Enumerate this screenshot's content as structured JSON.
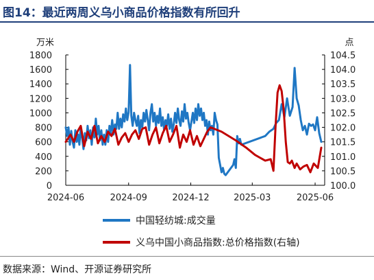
{
  "figure": {
    "title": "图14：最近两周义乌小商品价格指数有所回升",
    "source": "数据来源：Wind、开源证券研究所"
  },
  "colors": {
    "title": "#1f3f7a",
    "volume_series": "#1f77c4",
    "index_series": "#c00000"
  },
  "chart_data": {
    "type": "line",
    "left_axis": {
      "unit": "万米",
      "ylim": [
        0,
        1800
      ],
      "ticks": [
        "0",
        "200",
        "400",
        "600",
        "800",
        "1000",
        "1200",
        "1400",
        "1600",
        "1800"
      ]
    },
    "right_axis": {
      "unit": "点",
      "ylim": [
        100.0,
        104.5
      ],
      "ticks": [
        "100.0",
        "100.5",
        "101.0",
        "101.5",
        "102.0",
        "102.5",
        "103.0",
        "103.5",
        "104.0",
        "104.5"
      ]
    },
    "x_axis": {
      "range": [
        "2024-06-01",
        "2025-06-15"
      ],
      "ticks": [
        "2024-06",
        "2024-09",
        "2024-12",
        "2025-03",
        "2025-06"
      ]
    },
    "grid": false,
    "series": [
      {
        "name": "中国轻纺城:成交量",
        "axis": "left",
        "points": [
          [
            "2024-06-01",
            800
          ],
          [
            "2024-06-03",
            680
          ],
          [
            "2024-06-05",
            800
          ],
          [
            "2024-06-07",
            560
          ],
          [
            "2024-06-09",
            750
          ],
          [
            "2024-06-11",
            600
          ],
          [
            "2024-06-13",
            520
          ],
          [
            "2024-06-15",
            760
          ],
          [
            "2024-06-17",
            600
          ],
          [
            "2024-06-19",
            700
          ],
          [
            "2024-06-21",
            560
          ],
          [
            "2024-06-23",
            800
          ],
          [
            "2024-06-25",
            650
          ],
          [
            "2024-06-27",
            500
          ],
          [
            "2024-06-29",
            720
          ],
          [
            "2024-07-01",
            620
          ],
          [
            "2024-07-03",
            820
          ],
          [
            "2024-07-05",
            650
          ],
          [
            "2024-07-07",
            760
          ],
          [
            "2024-07-09",
            560
          ],
          [
            "2024-07-11",
            800
          ],
          [
            "2024-07-13",
            660
          ],
          [
            "2024-07-15",
            920
          ],
          [
            "2024-07-17",
            700
          ],
          [
            "2024-07-19",
            820
          ],
          [
            "2024-07-21",
            620
          ],
          [
            "2024-07-23",
            760
          ],
          [
            "2024-07-25",
            560
          ],
          [
            "2024-07-27",
            700
          ],
          [
            "2024-07-29",
            560
          ],
          [
            "2024-07-31",
            760
          ],
          [
            "2024-08-02",
            600
          ],
          [
            "2024-08-04",
            820
          ],
          [
            "2024-08-06",
            720
          ],
          [
            "2024-08-08",
            900
          ],
          [
            "2024-08-10",
            700
          ],
          [
            "2024-08-12",
            840
          ],
          [
            "2024-08-14",
            780
          ],
          [
            "2024-08-16",
            1000
          ],
          [
            "2024-08-18",
            780
          ],
          [
            "2024-08-20",
            920
          ],
          [
            "2024-08-22",
            800
          ],
          [
            "2024-08-24",
            980
          ],
          [
            "2024-08-26",
            880
          ],
          [
            "2024-08-28",
            1060
          ],
          [
            "2024-08-30",
            900
          ],
          [
            "2024-09-01",
            1010
          ],
          [
            "2024-09-03",
            1660
          ],
          [
            "2024-09-05",
            960
          ],
          [
            "2024-09-07",
            820
          ],
          [
            "2024-09-09",
            1000
          ],
          [
            "2024-09-11",
            900
          ],
          [
            "2024-09-13",
            820
          ],
          [
            "2024-09-15",
            960
          ],
          [
            "2024-09-17",
            720
          ],
          [
            "2024-09-19",
            900
          ],
          [
            "2024-09-21",
            800
          ],
          [
            "2024-09-23",
            1000
          ],
          [
            "2024-09-25",
            880
          ],
          [
            "2024-09-27",
            1040
          ],
          [
            "2024-09-29",
            900
          ],
          [
            "2024-10-01",
            760
          ],
          [
            "2024-10-03",
            1000
          ],
          [
            "2024-10-05",
            1120
          ],
          [
            "2024-10-07",
            880
          ],
          [
            "2024-10-09",
            1000
          ],
          [
            "2024-10-11",
            820
          ],
          [
            "2024-10-13",
            960
          ],
          [
            "2024-10-15",
            860
          ],
          [
            "2024-10-17",
            1060
          ],
          [
            "2024-10-19",
            820
          ],
          [
            "2024-10-21",
            940
          ],
          [
            "2024-10-23",
            760
          ],
          [
            "2024-10-25",
            900
          ],
          [
            "2024-10-27",
            820
          ],
          [
            "2024-10-29",
            980
          ],
          [
            "2024-10-31",
            780
          ],
          [
            "2024-11-02",
            920
          ],
          [
            "2024-11-04",
            740
          ],
          [
            "2024-11-06",
            840
          ],
          [
            "2024-11-08",
            1000
          ],
          [
            "2024-11-10",
            860
          ],
          [
            "2024-11-12",
            1060
          ],
          [
            "2024-11-14",
            900
          ],
          [
            "2024-11-16",
            820
          ],
          [
            "2024-11-18",
            1020
          ],
          [
            "2024-11-20",
            880
          ],
          [
            "2024-11-22",
            1120
          ],
          [
            "2024-11-24",
            920
          ],
          [
            "2024-11-26",
            1000
          ],
          [
            "2024-11-28",
            860
          ],
          [
            "2024-11-30",
            760
          ],
          [
            "2024-12-02",
            880
          ],
          [
            "2024-12-04",
            1000
          ],
          [
            "2024-12-06",
            860
          ],
          [
            "2024-12-08",
            1060
          ],
          [
            "2024-12-10",
            900
          ],
          [
            "2024-12-12",
            1120
          ],
          [
            "2024-12-14",
            960
          ],
          [
            "2024-12-16",
            1060
          ],
          [
            "2024-12-18",
            900
          ],
          [
            "2024-12-20",
            1000
          ],
          [
            "2024-12-22",
            820
          ],
          [
            "2024-12-24",
            900
          ],
          [
            "2024-12-26",
            700
          ],
          [
            "2024-12-28",
            880
          ],
          [
            "2024-12-30",
            760
          ],
          [
            "2025-01-01",
            820
          ],
          [
            "2025-01-03",
            700
          ],
          [
            "2025-01-05",
            1000
          ],
          [
            "2025-01-07",
            900
          ],
          [
            "2025-01-09",
            840
          ],
          [
            "2025-01-11",
            380
          ],
          [
            "2025-01-13",
            280
          ],
          [
            "2025-01-15",
            180
          ],
          [
            "2025-01-17",
            240
          ],
          [
            "2025-01-19",
            160
          ],
          [
            "2025-01-21",
            140
          ],
          [
            "2025-02-01",
            280
          ],
          [
            "2025-02-03",
            360
          ],
          [
            "2025-02-05",
            240
          ],
          [
            "2025-02-07",
            680
          ],
          [
            "2025-02-09",
            580
          ],
          [
            "2025-02-11",
            640
          ],
          [
            "2025-02-13",
            560
          ],
          [
            "2025-03-20",
            680
          ],
          [
            "2025-03-26",
            740
          ],
          [
            "2025-04-01",
            780
          ],
          [
            "2025-04-05",
            860
          ],
          [
            "2025-04-09",
            900
          ],
          [
            "2025-04-13",
            1120
          ],
          [
            "2025-04-17",
            940
          ],
          [
            "2025-04-21",
            1200
          ],
          [
            "2025-04-25",
            960
          ],
          [
            "2025-04-29",
            1080
          ],
          [
            "2025-05-02",
            1620
          ],
          [
            "2025-05-05",
            1200
          ],
          [
            "2025-05-08",
            1100
          ],
          [
            "2025-05-11",
            900
          ],
          [
            "2025-05-14",
            760
          ],
          [
            "2025-05-17",
            820
          ],
          [
            "2025-05-20",
            700
          ],
          [
            "2025-05-23",
            850
          ],
          [
            "2025-05-26",
            820
          ],
          [
            "2025-05-29",
            840
          ],
          [
            "2025-06-01",
            760
          ],
          [
            "2025-06-04",
            940
          ],
          [
            "2025-06-07",
            720
          ],
          [
            "2025-06-10",
            600
          ]
        ]
      },
      {
        "name": "义乌中国小商品指数:总价格指数(右轴)",
        "axis": "right",
        "points": [
          [
            "2024-06-01",
            101.5
          ],
          [
            "2024-06-08",
            101.75
          ],
          [
            "2024-06-13",
            101.5
          ],
          [
            "2024-06-18",
            101.85
          ],
          [
            "2024-06-23",
            102.05
          ],
          [
            "2024-06-28",
            101.35
          ],
          [
            "2024-07-03",
            101.85
          ],
          [
            "2024-07-08",
            101.6
          ],
          [
            "2024-07-13",
            102.05
          ],
          [
            "2024-07-18",
            101.45
          ],
          [
            "2024-07-23",
            101.7
          ],
          [
            "2024-07-28",
            101.5
          ],
          [
            "2024-08-02",
            101.85
          ],
          [
            "2024-08-07",
            101.7
          ],
          [
            "2024-08-12",
            101.95
          ],
          [
            "2024-08-17",
            101.4
          ],
          [
            "2024-08-22",
            101.65
          ],
          [
            "2024-08-27",
            101.8
          ],
          [
            "2024-09-01",
            101.5
          ],
          [
            "2024-09-06",
            101.75
          ],
          [
            "2024-09-11",
            101.9
          ],
          [
            "2024-09-16",
            101.6
          ],
          [
            "2024-09-21",
            101.95
          ],
          [
            "2024-09-26",
            102.0
          ],
          [
            "2024-10-01",
            101.4
          ],
          [
            "2024-10-06",
            101.75
          ],
          [
            "2024-10-11",
            102.0
          ],
          [
            "2024-10-16",
            101.45
          ],
          [
            "2024-10-21",
            101.8
          ],
          [
            "2024-10-26",
            102.05
          ],
          [
            "2024-10-31",
            101.5
          ],
          [
            "2024-11-05",
            101.75
          ],
          [
            "2024-11-10",
            102.05
          ],
          [
            "2024-11-15",
            101.3
          ],
          [
            "2024-11-20",
            101.75
          ],
          [
            "2024-11-25",
            101.5
          ],
          [
            "2024-11-30",
            101.9
          ],
          [
            "2024-12-05",
            101.4
          ],
          [
            "2024-12-10",
            101.7
          ],
          [
            "2024-12-15",
            101.35
          ],
          [
            "2024-12-20",
            101.6
          ],
          [
            "2024-12-25",
            101.85
          ],
          [
            "2024-12-30",
            102.0
          ],
          [
            "2025-01-15",
            101.85
          ],
          [
            "2025-02-05",
            101.55
          ],
          [
            "2025-02-20",
            101.3
          ],
          [
            "2025-03-05",
            101.05
          ],
          [
            "2025-03-20",
            100.85
          ],
          [
            "2025-03-28",
            100.9
          ],
          [
            "2025-04-01",
            100.5
          ],
          [
            "2025-04-04",
            102.0
          ],
          [
            "2025-04-07",
            103.2
          ],
          [
            "2025-04-10",
            103.45
          ],
          [
            "2025-04-13",
            103.25
          ],
          [
            "2025-04-16",
            102.6
          ],
          [
            "2025-04-19",
            101.5
          ],
          [
            "2025-04-22",
            100.8
          ],
          [
            "2025-04-25",
            100.75
          ],
          [
            "2025-04-28",
            100.85
          ],
          [
            "2025-05-02",
            100.6
          ],
          [
            "2025-05-05",
            100.75
          ],
          [
            "2025-05-10",
            100.55
          ],
          [
            "2025-05-15",
            100.65
          ],
          [
            "2025-05-20",
            100.7
          ],
          [
            "2025-05-25",
            100.45
          ],
          [
            "2025-05-30",
            100.75
          ],
          [
            "2025-06-05",
            100.6
          ],
          [
            "2025-06-10",
            101.3
          ]
        ]
      }
    ]
  },
  "legend": {
    "volume_label": "中国轻纺城:成交量",
    "index_label": "义乌中国小商品指数:总价格指数(右轴)"
  }
}
